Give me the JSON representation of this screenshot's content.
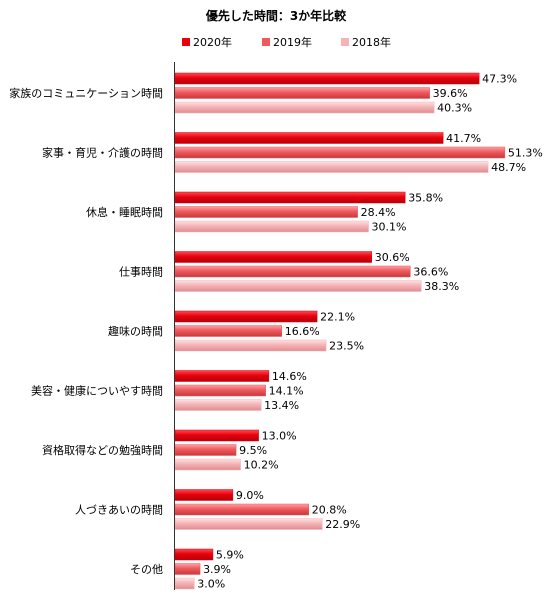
{
  "chart_data": {
    "type": "bar",
    "orientation": "horizontal",
    "title": "優先した時間：3か年比較",
    "legend_position": "top",
    "xlim": [
      0,
      60
    ],
    "grid": false,
    "value_suffix": "%",
    "categories": [
      "家族のコミュニケーション時間",
      "家事・育児・介護の時間",
      "休息・睡眠時間",
      "仕事時間",
      "趣味の時間",
      "美容・健康についやす時間",
      "資格取得などの勉強時間",
      "人づきあいの時間",
      "その他"
    ],
    "series": [
      {
        "name": "2020年",
        "color": "#e8000e",
        "values": [
          47.3,
          41.7,
          35.8,
          30.6,
          22.1,
          14.6,
          13.0,
          9.0,
          5.9
        ]
      },
      {
        "name": "2019年",
        "color": "#ee5a5e",
        "values": [
          39.6,
          51.3,
          28.4,
          36.6,
          16.6,
          14.1,
          9.5,
          20.8,
          3.9
        ]
      },
      {
        "name": "2018年",
        "color": "#f6b3b6",
        "values": [
          40.3,
          48.7,
          30.1,
          38.3,
          23.5,
          13.4,
          10.2,
          22.9,
          3.0
        ]
      }
    ]
  }
}
